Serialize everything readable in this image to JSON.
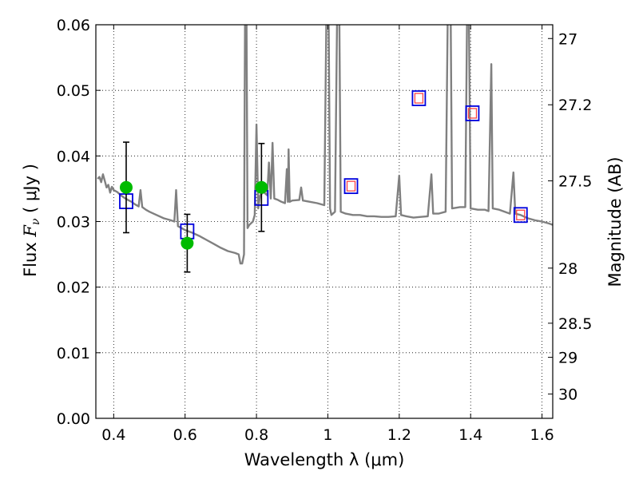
{
  "chart_data": {
    "type": "line",
    "title": "",
    "xlabel": "Wavelength  λ (μm)",
    "ylabel_left_prefix": "Flux  ",
    "ylabel_left_var": "F",
    "ylabel_left_sub": "ν",
    "ylabel_left_unit": "  ( μJy )",
    "ylabel_right": "Magnitude (AB)",
    "xlim": [
      0.35,
      1.63
    ],
    "ylim": [
      0.0,
      0.06
    ],
    "grid": true,
    "x_ticks": [
      {
        "value": 0.4,
        "label": "0.4"
      },
      {
        "value": 0.6,
        "label": "0.6"
      },
      {
        "value": 0.8,
        "label": "0.8"
      },
      {
        "value": 1.0,
        "label": "1"
      },
      {
        "value": 1.2,
        "label": "1.2"
      },
      {
        "value": 1.4,
        "label": "1.4"
      },
      {
        "value": 1.6,
        "label": "1.6"
      }
    ],
    "y_ticks": [
      {
        "value": 0.0,
        "label": "0.00"
      },
      {
        "value": 0.01,
        "label": "0.01"
      },
      {
        "value": 0.02,
        "label": "0.02"
      },
      {
        "value": 0.03,
        "label": "0.03"
      },
      {
        "value": 0.04,
        "label": "0.04"
      },
      {
        "value": 0.05,
        "label": "0.05"
      },
      {
        "value": 0.06,
        "label": "0.06"
      }
    ],
    "right_ticks": [
      {
        "label": "27",
        "flux": 0.0579
      },
      {
        "label": "27.2",
        "flux": 0.0478
      },
      {
        "label": "27.5",
        "flux": 0.0362
      },
      {
        "label": "28",
        "flux": 0.0229
      },
      {
        "label": "28.5",
        "flux": 0.0145
      },
      {
        "label": "29",
        "flux": 0.0093
      },
      {
        "label": "30",
        "flux": 0.0037
      }
    ],
    "series": [
      {
        "kind": "model_spectrum",
        "color": "#808080",
        "points": [
          [
            0.355,
            0.0365
          ],
          [
            0.36,
            0.0368
          ],
          [
            0.365,
            0.036
          ],
          [
            0.37,
            0.0372
          ],
          [
            0.375,
            0.0362
          ],
          [
            0.38,
            0.0352
          ],
          [
            0.385,
            0.0356
          ],
          [
            0.39,
            0.0344
          ],
          [
            0.395,
            0.0353
          ],
          [
            0.4,
            0.0348
          ],
          [
            0.41,
            0.0345
          ],
          [
            0.42,
            0.034
          ],
          [
            0.43,
            0.0336
          ],
          [
            0.44,
            0.0333
          ],
          [
            0.45,
            0.033
          ],
          [
            0.46,
            0.0326
          ],
          [
            0.47,
            0.0323
          ],
          [
            0.475,
            0.0348
          ],
          [
            0.48,
            0.0322
          ],
          [
            0.49,
            0.0318
          ],
          [
            0.5,
            0.0315
          ],
          [
            0.52,
            0.031
          ],
          [
            0.54,
            0.0305
          ],
          [
            0.56,
            0.0302
          ],
          [
            0.57,
            0.03
          ],
          [
            0.575,
            0.0348
          ],
          [
            0.58,
            0.0293
          ],
          [
            0.59,
            0.029
          ],
          [
            0.6,
            0.0287
          ],
          [
            0.62,
            0.0283
          ],
          [
            0.64,
            0.0278
          ],
          [
            0.66,
            0.0272
          ],
          [
            0.68,
            0.0266
          ],
          [
            0.7,
            0.026
          ],
          [
            0.72,
            0.0255
          ],
          [
            0.74,
            0.0252
          ],
          [
            0.75,
            0.025
          ],
          [
            0.755,
            0.0236
          ],
          [
            0.76,
            0.0236
          ],
          [
            0.765,
            0.025
          ],
          [
            0.768,
            0.062
          ],
          [
            0.772,
            0.062
          ],
          [
            0.775,
            0.029
          ],
          [
            0.78,
            0.0295
          ],
          [
            0.79,
            0.03
          ],
          [
            0.795,
            0.031
          ],
          [
            0.8,
            0.0448
          ],
          [
            0.805,
            0.032
          ],
          [
            0.81,
            0.034
          ],
          [
            0.82,
            0.0345
          ],
          [
            0.83,
            0.034
          ],
          [
            0.835,
            0.039
          ],
          [
            0.84,
            0.0335
          ],
          [
            0.845,
            0.042
          ],
          [
            0.85,
            0.0335
          ],
          [
            0.86,
            0.0333
          ],
          [
            0.87,
            0.033
          ],
          [
            0.88,
            0.0328
          ],
          [
            0.885,
            0.038
          ],
          [
            0.888,
            0.033
          ],
          [
            0.89,
            0.041
          ],
          [
            0.893,
            0.033
          ],
          [
            0.9,
            0.0332
          ],
          [
            0.92,
            0.0333
          ],
          [
            0.925,
            0.0352
          ],
          [
            0.93,
            0.0332
          ],
          [
            0.95,
            0.033
          ],
          [
            0.97,
            0.0328
          ],
          [
            0.99,
            0.0325
          ],
          [
            0.996,
            0.062
          ],
          [
            1.002,
            0.062
          ],
          [
            1.006,
            0.032
          ],
          [
            1.01,
            0.031
          ],
          [
            1.02,
            0.0315
          ],
          [
            1.026,
            0.062
          ],
          [
            1.032,
            0.062
          ],
          [
            1.036,
            0.0315
          ],
          [
            1.05,
            0.0312
          ],
          [
            1.07,
            0.031
          ],
          [
            1.09,
            0.031
          ],
          [
            1.11,
            0.0308
          ],
          [
            1.13,
            0.0308
          ],
          [
            1.15,
            0.0307
          ],
          [
            1.17,
            0.0307
          ],
          [
            1.19,
            0.0308
          ],
          [
            1.2,
            0.037
          ],
          [
            1.205,
            0.031
          ],
          [
            1.22,
            0.0308
          ],
          [
            1.24,
            0.0306
          ],
          [
            1.26,
            0.0307
          ],
          [
            1.28,
            0.0308
          ],
          [
            1.29,
            0.0372
          ],
          [
            1.295,
            0.0312
          ],
          [
            1.31,
            0.0312
          ],
          [
            1.33,
            0.0315
          ],
          [
            1.336,
            0.062
          ],
          [
            1.344,
            0.062
          ],
          [
            1.348,
            0.032
          ],
          [
            1.37,
            0.0322
          ],
          [
            1.385,
            0.0322
          ],
          [
            1.39,
            0.062
          ],
          [
            1.395,
            0.062
          ],
          [
            1.4,
            0.032
          ],
          [
            1.42,
            0.0318
          ],
          [
            1.44,
            0.0318
          ],
          [
            1.45,
            0.0316
          ],
          [
            1.458,
            0.054
          ],
          [
            1.462,
            0.032
          ],
          [
            1.48,
            0.0318
          ],
          [
            1.5,
            0.0314
          ],
          [
            1.51,
            0.0312
          ],
          [
            1.52,
            0.0375
          ],
          [
            1.525,
            0.0312
          ],
          [
            1.54,
            0.031
          ],
          [
            1.56,
            0.0305
          ],
          [
            1.58,
            0.0302
          ],
          [
            1.6,
            0.03
          ],
          [
            1.62,
            0.0297
          ],
          [
            1.63,
            0.0295
          ]
        ]
      },
      {
        "kind": "observed_photometry",
        "color": "#00bb00",
        "points": [
          {
            "x": 0.435,
            "y": 0.0352,
            "yerr": 0.0069
          },
          {
            "x": 0.606,
            "y": 0.0267,
            "yerr": 0.0044
          },
          {
            "x": 0.814,
            "y": 0.0352,
            "yerr": 0.0067
          }
        ]
      },
      {
        "kind": "model_synthetic_photometry",
        "color": "#0000dd",
        "points": [
          {
            "x": 0.435,
            "y": 0.0331
          },
          {
            "x": 0.606,
            "y": 0.0285
          },
          {
            "x": 0.814,
            "y": 0.0336
          },
          {
            "x": 1.065,
            "y": 0.0354
          },
          {
            "x": 1.255,
            "y": 0.0488
          },
          {
            "x": 1.405,
            "y": 0.0465
          },
          {
            "x": 1.54,
            "y": 0.031
          }
        ]
      },
      {
        "kind": "model_synthetic_photometry_inner",
        "color": "#ff4444",
        "points": [
          {
            "x": 1.065,
            "y": 0.0354
          },
          {
            "x": 1.255,
            "y": 0.0488
          },
          {
            "x": 1.405,
            "y": 0.0465
          },
          {
            "x": 1.54,
            "y": 0.031
          }
        ]
      }
    ]
  }
}
